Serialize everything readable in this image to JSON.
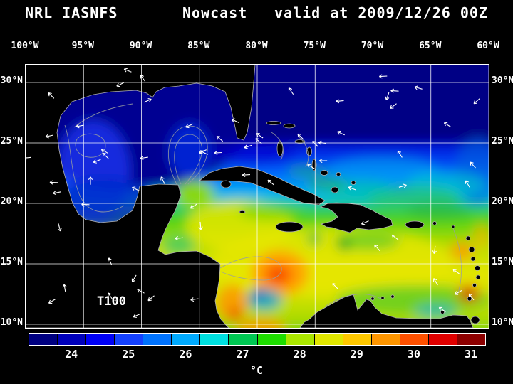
{
  "title": {
    "model": "NRL IASNFS",
    "product": "Nowcast",
    "valid": "valid at 2009/12/26 00Z"
  },
  "map": {
    "lon_labels": [
      "100°W",
      "95°W",
      "90°W",
      "85°W",
      "80°W",
      "75°W",
      "70°W",
      "65°W",
      "60°W"
    ],
    "lat_labels": [
      "30°N",
      "25°N",
      "20°N",
      "15°N",
      "10°N"
    ],
    "field_label": "T100"
  },
  "colorbar": {
    "tick_labels": [
      "24",
      "25",
      "26",
      "27",
      "28",
      "29",
      "30",
      "31"
    ],
    "unit": "°C",
    "min": 24,
    "max": 31,
    "colors": [
      "#000080",
      "#0000bb",
      "#0000f5",
      "#1441ff",
      "#0073ff",
      "#00aaff",
      "#00e1e1",
      "#00c853",
      "#1edc00",
      "#aae600",
      "#e1e600",
      "#ffc800",
      "#ff9600",
      "#ff5000",
      "#e10000",
      "#8c0000"
    ]
  },
  "colors": {
    "background": "#000000",
    "frame": "#ffffff",
    "grid": "#ffffff",
    "text": "#ffffff",
    "coastline": "#b0b0b0",
    "contour": "#9aa0a0",
    "vector": "#ffffff"
  }
}
